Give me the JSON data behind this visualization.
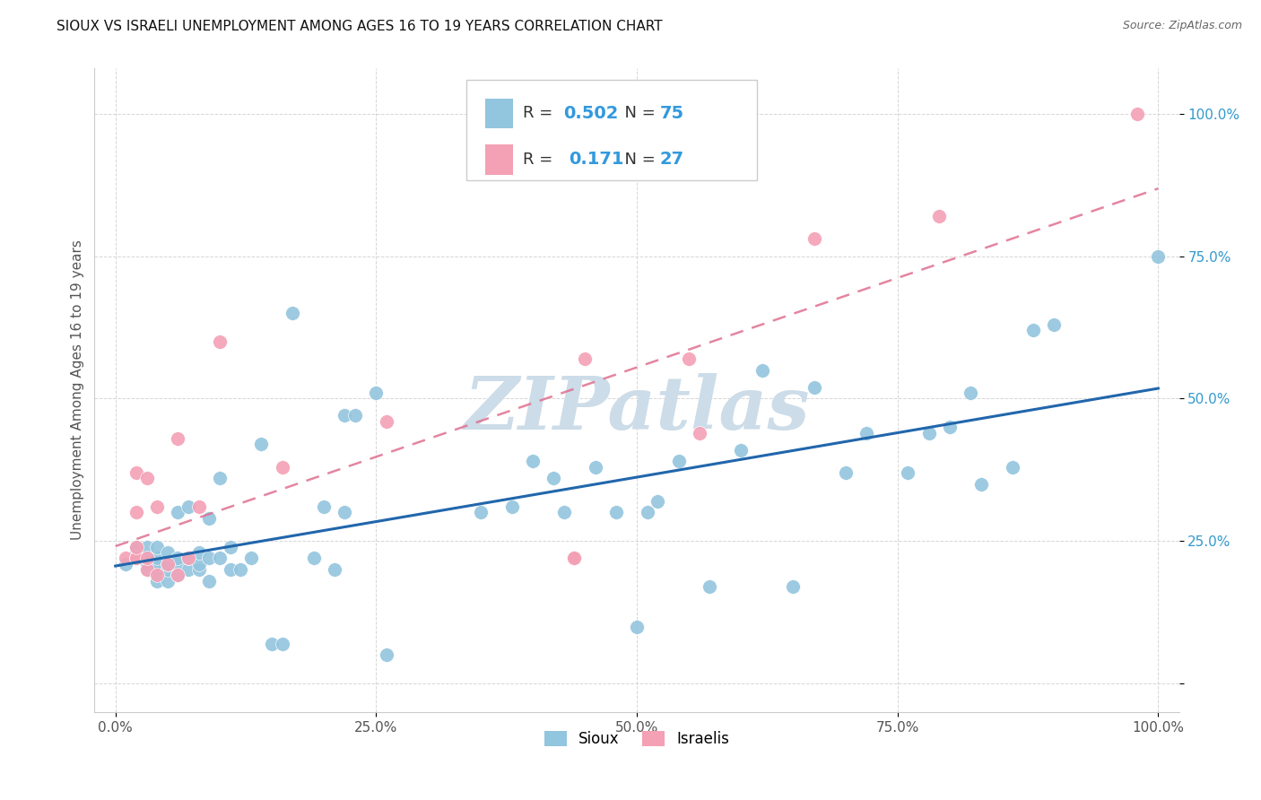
{
  "title": "SIOUX VS ISRAELI UNEMPLOYMENT AMONG AGES 16 TO 19 YEARS CORRELATION CHART",
  "source": "Source: ZipAtlas.com",
  "ylabel": "Unemployment Among Ages 16 to 19 years",
  "xlim": [
    -0.02,
    1.02
  ],
  "ylim": [
    -0.05,
    1.08
  ],
  "xticks": [
    0.0,
    0.25,
    0.5,
    0.75,
    1.0
  ],
  "yticks": [
    0.0,
    0.25,
    0.5,
    0.75,
    1.0
  ],
  "xtick_labels": [
    "0.0%",
    "25.0%",
    "50.0%",
    "75.0%",
    "100.0%"
  ],
  "ytick_labels": [
    "",
    "25.0%",
    "50.0%",
    "75.0%",
    "100.0%"
  ],
  "sioux_R": 0.502,
  "sioux_N": 75,
  "israeli_R": 0.171,
  "israeli_N": 27,
  "sioux_color": "#92c5de",
  "israeli_color": "#f4a0b5",
  "sioux_line_color": "#2166ac",
  "israeli_line_color": "#e07090",
  "watermark": "ZIPatlas",
  "watermark_color": "#ccdce8",
  "background_color": "#ffffff",
  "sioux_x": [
    0.01,
    0.02,
    0.02,
    0.03,
    0.03,
    0.03,
    0.03,
    0.04,
    0.04,
    0.04,
    0.04,
    0.04,
    0.05,
    0.05,
    0.05,
    0.05,
    0.06,
    0.06,
    0.06,
    0.06,
    0.07,
    0.07,
    0.07,
    0.08,
    0.08,
    0.08,
    0.09,
    0.09,
    0.09,
    0.1,
    0.1,
    0.11,
    0.11,
    0.12,
    0.13,
    0.14,
    0.15,
    0.16,
    0.17,
    0.19,
    0.2,
    0.21,
    0.22,
    0.22,
    0.23,
    0.25,
    0.26,
    0.35,
    0.38,
    0.4,
    0.42,
    0.43,
    0.44,
    0.46,
    0.48,
    0.5,
    0.51,
    0.52,
    0.54,
    0.57,
    0.6,
    0.62,
    0.65,
    0.67,
    0.7,
    0.72,
    0.76,
    0.78,
    0.8,
    0.82,
    0.83,
    0.86,
    0.88,
    0.9,
    1.0
  ],
  "sioux_y": [
    0.21,
    0.23,
    0.24,
    0.2,
    0.21,
    0.22,
    0.24,
    0.18,
    0.2,
    0.21,
    0.22,
    0.24,
    0.18,
    0.2,
    0.21,
    0.23,
    0.19,
    0.21,
    0.22,
    0.3,
    0.2,
    0.22,
    0.31,
    0.2,
    0.21,
    0.23,
    0.18,
    0.22,
    0.29,
    0.22,
    0.36,
    0.2,
    0.24,
    0.2,
    0.22,
    0.42,
    0.07,
    0.07,
    0.65,
    0.22,
    0.31,
    0.2,
    0.3,
    0.47,
    0.47,
    0.51,
    0.05,
    0.3,
    0.31,
    0.39,
    0.36,
    0.3,
    0.22,
    0.38,
    0.3,
    0.1,
    0.3,
    0.32,
    0.39,
    0.17,
    0.41,
    0.55,
    0.17,
    0.52,
    0.37,
    0.44,
    0.37,
    0.44,
    0.45,
    0.51,
    0.35,
    0.38,
    0.62,
    0.63,
    0.75
  ],
  "israeli_x": [
    0.01,
    0.02,
    0.02,
    0.02,
    0.02,
    0.02,
    0.03,
    0.03,
    0.03,
    0.04,
    0.04,
    0.05,
    0.06,
    0.06,
    0.07,
    0.08,
    0.1,
    0.16,
    0.26,
    0.44,
    0.44,
    0.45,
    0.55,
    0.56,
    0.67,
    0.79,
    0.98
  ],
  "israeli_y": [
    0.22,
    0.22,
    0.22,
    0.24,
    0.3,
    0.37,
    0.2,
    0.22,
    0.36,
    0.19,
    0.31,
    0.21,
    0.19,
    0.43,
    0.22,
    0.31,
    0.6,
    0.38,
    0.46,
    0.22,
    0.22,
    0.57,
    0.57,
    0.44,
    0.78,
    0.82,
    1.0
  ]
}
